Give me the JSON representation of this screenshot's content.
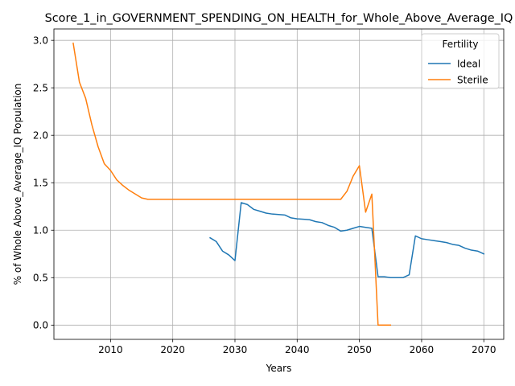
{
  "chart_data": {
    "type": "line",
    "title": "Score_1_in_GOVERNMENT_SPENDING_ON_HEALTH_for_Whole_Above_Average_IQ",
    "xlabel": "Years",
    "ylabel": "% of Whole Above_Average_IQ Population",
    "xlim": [
      2000.9,
      2073.2
    ],
    "ylim": [
      -0.15,
      3.12
    ],
    "xticks": [
      2010,
      2020,
      2030,
      2040,
      2050,
      2060,
      2070
    ],
    "xtick_labels": [
      "2010",
      "2020",
      "2030",
      "2040",
      "2050",
      "2060",
      "2070"
    ],
    "yticks": [
      0.0,
      0.5,
      1.0,
      1.5,
      2.0,
      2.5,
      3.0
    ],
    "ytick_labels": [
      "0.0",
      "0.5",
      "1.0",
      "1.5",
      "2.0",
      "2.5",
      "3.0"
    ],
    "grid": true,
    "legend": {
      "title": "Fertility",
      "position": "top-right"
    },
    "series": [
      {
        "name": "Ideal",
        "color": "#1f77b4",
        "x": [
          2026,
          2027,
          2028,
          2029,
          2030,
          2031,
          2032,
          2033,
          2034,
          2035,
          2036,
          2037,
          2038,
          2039,
          2040,
          2041,
          2042,
          2043,
          2044,
          2045,
          2046,
          2047,
          2048,
          2049,
          2050,
          2051,
          2052,
          2053,
          2054,
          2055,
          2056,
          2057,
          2058,
          2059,
          2060,
          2061,
          2062,
          2063,
          2064,
          2065,
          2066,
          2067,
          2068,
          2069,
          2070
        ],
        "y": [
          0.92,
          0.88,
          0.78,
          0.74,
          0.68,
          1.29,
          1.27,
          1.22,
          1.2,
          1.18,
          1.17,
          1.165,
          1.16,
          1.13,
          1.12,
          1.115,
          1.11,
          1.09,
          1.08,
          1.05,
          1.03,
          0.99,
          1.0,
          1.02,
          1.04,
          1.03,
          1.02,
          0.51,
          0.51,
          0.5,
          0.5,
          0.5,
          0.53,
          0.94,
          0.91,
          0.9,
          0.89,
          0.88,
          0.87,
          0.85,
          0.84,
          0.81,
          0.79,
          0.78,
          0.75
        ]
      },
      {
        "name": "Sterile",
        "color": "#ff7f0e",
        "x": [
          2004,
          2005,
          2006,
          2007,
          2008,
          2009,
          2010,
          2011,
          2012,
          2013,
          2014,
          2015,
          2016,
          2017,
          2018,
          2020,
          2025,
          2030,
          2035,
          2040,
          2045,
          2046,
          2047,
          2048,
          2049,
          2050,
          2051,
          2052,
          2053,
          2054,
          2055
        ],
        "y": [
          2.97,
          2.56,
          2.39,
          2.11,
          1.88,
          1.7,
          1.63,
          1.53,
          1.47,
          1.42,
          1.38,
          1.34,
          1.325,
          1.325,
          1.325,
          1.325,
          1.325,
          1.325,
          1.325,
          1.325,
          1.325,
          1.325,
          1.325,
          1.41,
          1.57,
          1.68,
          1.19,
          1.38,
          0.0,
          0.0,
          0.0
        ]
      }
    ]
  }
}
